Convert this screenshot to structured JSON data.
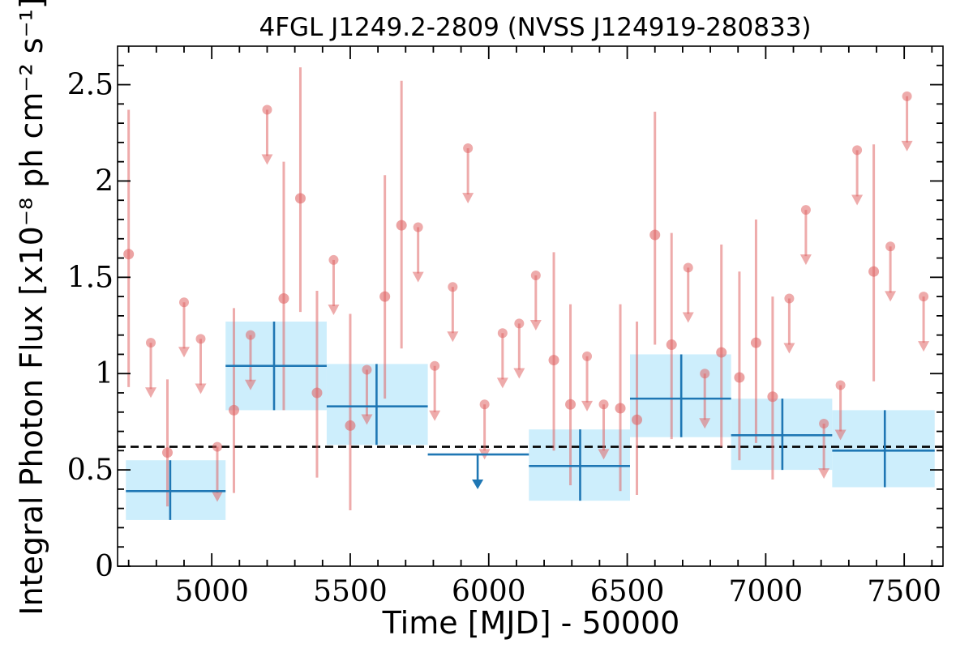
{
  "chart_data": {
    "type": "scatter",
    "title": "4FGL J1249.2-2809 (NVSS J124919-280833)",
    "xlabel": "Time [MJD] - 50000",
    "ylabel": "Integral Photon Flux [x10⁻⁸ ph cm⁻² s⁻¹]",
    "xlim": [
      4660,
      7640
    ],
    "ylim": [
      0,
      2.7
    ],
    "xticks": [
      5000,
      5500,
      6000,
      6500,
      7000,
      7500
    ],
    "xtick_labels": [
      "5000",
      "5500",
      "6000",
      "6500",
      "7000",
      "7500"
    ],
    "yticks": [
      0,
      0.5,
      1,
      1.5,
      2,
      2.5
    ],
    "ytick_labels": [
      "0",
      "0.5",
      "1",
      "1.5",
      "2",
      "2.5"
    ],
    "grid": false,
    "reference_line": {
      "y": 0.62,
      "style": "dashed",
      "color": "#000000"
    },
    "colors": {
      "short_bins": "#e06666",
      "long_bins": "#1f77b4",
      "long_band": "#cdeefc"
    },
    "series": [
      {
        "bin": "short",
        "detections": [
          {
            "x": 4700,
            "y": 1.62,
            "ylo": 0.93,
            "yhi": 2.37
          },
          {
            "x": 4840,
            "y": 0.59,
            "ylo": 0.31,
            "yhi": 0.97
          },
          {
            "x": 5080,
            "y": 0.81,
            "ylo": 0.38,
            "yhi": 1.34
          },
          {
            "x": 5260,
            "y": 1.39,
            "ylo": 0.81,
            "yhi": 2.1
          },
          {
            "x": 5320,
            "y": 1.91,
            "ylo": 1.32,
            "yhi": 2.59
          },
          {
            "x": 5380,
            "y": 0.9,
            "ylo": 0.46,
            "yhi": 1.43
          },
          {
            "x": 5500,
            "y": 0.73,
            "ylo": 0.29,
            "yhi": 1.31
          },
          {
            "x": 5625,
            "y": 1.4,
            "ylo": 0.87,
            "yhi": 2.03
          },
          {
            "x": 5685,
            "y": 1.77,
            "ylo": 1.13,
            "yhi": 2.52
          },
          {
            "x": 6235,
            "y": 1.07,
            "ylo": 0.6,
            "yhi": 1.63
          },
          {
            "x": 6295,
            "y": 0.84,
            "ylo": 0.42,
            "yhi": 1.36
          },
          {
            "x": 6475,
            "y": 0.82,
            "ylo": 0.39,
            "yhi": 1.36
          },
          {
            "x": 6535,
            "y": 0.76,
            "ylo": 0.37,
            "yhi": 1.27
          },
          {
            "x": 6600,
            "y": 1.72,
            "ylo": 1.15,
            "yhi": 2.36
          },
          {
            "x": 6660,
            "y": 1.15,
            "ylo": 0.66,
            "yhi": 1.73
          },
          {
            "x": 6840,
            "y": 1.11,
            "ylo": 0.62,
            "yhi": 1.67
          },
          {
            "x": 6905,
            "y": 0.98,
            "ylo": 0.55,
            "yhi": 1.53
          },
          {
            "x": 6965,
            "y": 1.16,
            "ylo": 0.64,
            "yhi": 1.8
          },
          {
            "x": 7025,
            "y": 0.88,
            "ylo": 0.45,
            "yhi": 1.4
          },
          {
            "x": 7390,
            "y": 1.53,
            "ylo": 0.96,
            "yhi": 2.19
          }
        ],
        "upper_limits": [
          {
            "x": 4780,
            "y": 1.16
          },
          {
            "x": 4900,
            "y": 1.37
          },
          {
            "x": 4960,
            "y": 1.18
          },
          {
            "x": 5020,
            "y": 0.62
          },
          {
            "x": 5140,
            "y": 1.2
          },
          {
            "x": 5200,
            "y": 2.37
          },
          {
            "x": 5440,
            "y": 1.59
          },
          {
            "x": 5560,
            "y": 1.02
          },
          {
            "x": 5745,
            "y": 1.76
          },
          {
            "x": 5805,
            "y": 1.04
          },
          {
            "x": 5870,
            "y": 1.45
          },
          {
            "x": 5925,
            "y": 2.17
          },
          {
            "x": 5985,
            "y": 0.84
          },
          {
            "x": 6050,
            "y": 1.21
          },
          {
            "x": 6110,
            "y": 1.26
          },
          {
            "x": 6170,
            "y": 1.51
          },
          {
            "x": 6355,
            "y": 1.09
          },
          {
            "x": 6415,
            "y": 0.84
          },
          {
            "x": 6780,
            "y": 1.0
          },
          {
            "x": 6720,
            "y": 1.55
          },
          {
            "x": 7085,
            "y": 1.39
          },
          {
            "x": 7145,
            "y": 1.85
          },
          {
            "x": 7210,
            "y": 0.74
          },
          {
            "x": 7270,
            "y": 0.94
          },
          {
            "x": 7330,
            "y": 2.16
          },
          {
            "x": 7450,
            "y": 1.66
          },
          {
            "x": 7510,
            "y": 2.44
          },
          {
            "x": 7570,
            "y": 1.4
          }
        ]
      },
      {
        "bin": "long",
        "detections": [
          {
            "x": 4850,
            "x0": 4690,
            "x1": 5050,
            "y": 0.39,
            "ylo": 0.24,
            "yhi": 0.55
          },
          {
            "x": 5225,
            "x0": 5050,
            "x1": 5415,
            "y": 1.04,
            "ylo": 0.81,
            "yhi": 1.27
          },
          {
            "x": 5595,
            "x0": 5415,
            "x1": 5780,
            "y": 0.83,
            "ylo": 0.63,
            "yhi": 1.05
          },
          {
            "x": 6330,
            "x0": 6145,
            "x1": 6510,
            "y": 0.52,
            "ylo": 0.34,
            "yhi": 0.71
          },
          {
            "x": 6695,
            "x0": 6510,
            "x1": 6875,
            "y": 0.87,
            "ylo": 0.67,
            "yhi": 1.1
          },
          {
            "x": 7060,
            "x0": 6875,
            "x1": 7240,
            "y": 0.68,
            "ylo": 0.5,
            "yhi": 0.87
          },
          {
            "x": 7430,
            "x0": 7240,
            "x1": 7610,
            "y": 0.6,
            "ylo": 0.41,
            "yhi": 0.81
          }
        ],
        "upper_limits": [
          {
            "x": 5960,
            "x0": 5780,
            "x1": 6145,
            "y": 0.58
          }
        ]
      }
    ]
  }
}
